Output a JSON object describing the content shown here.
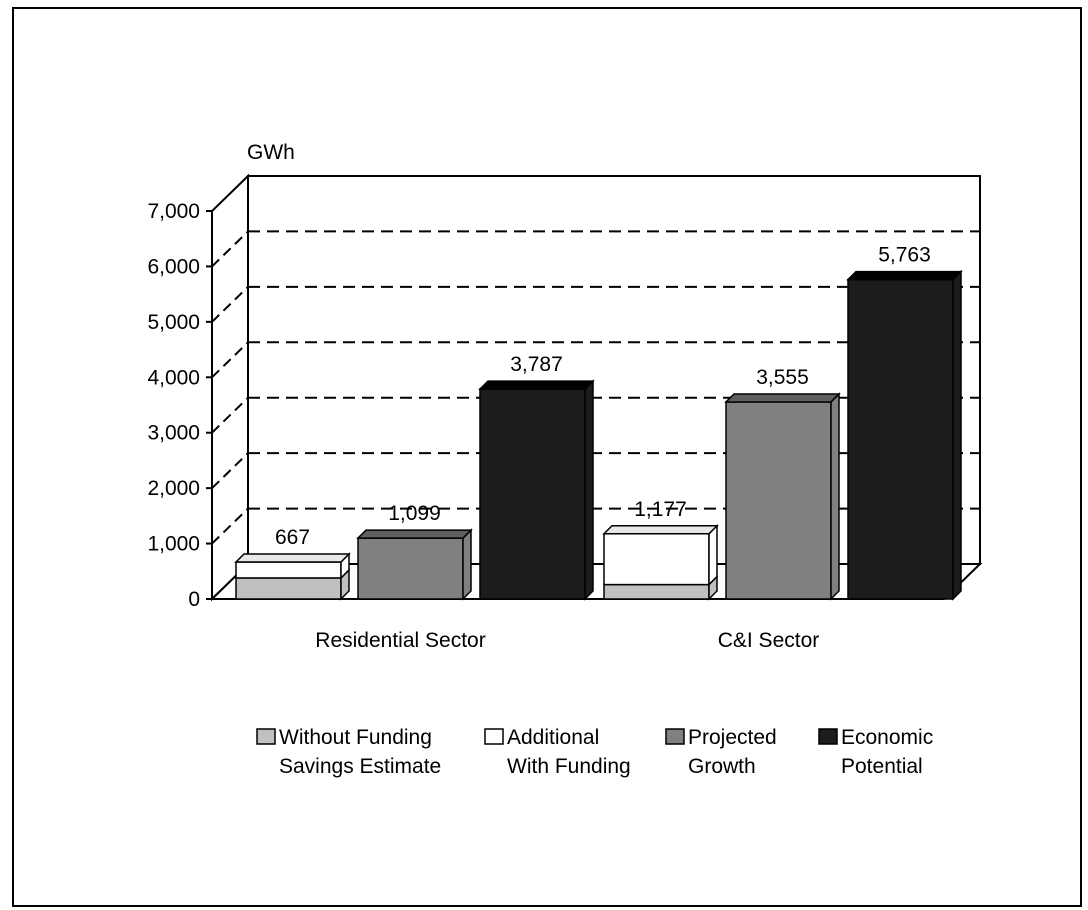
{
  "chart_data": {
    "type": "bar",
    "stacked_first_series": true,
    "unit_label": "GWh",
    "categories": [
      "Residential Sector",
      "C&I Sector"
    ],
    "ylim": [
      0,
      7000
    ],
    "yticks": [
      "0",
      "1,000",
      "2,000",
      "3,000",
      "4,000",
      "5,000",
      "6,000",
      "7,000"
    ],
    "grid": true,
    "legend_position": "bottom",
    "series": [
      {
        "name": "Without Funding Savings Estimate",
        "legend_lines": [
          "Without Funding",
          "Savings Estimate"
        ],
        "values": [
          380,
          260
        ],
        "color": "#c0c0c0"
      },
      {
        "name": "Additional With Funding",
        "legend_lines": [
          "Additional",
          "With Funding"
        ],
        "values": [
          287,
          917
        ],
        "color": "#ffffff"
      },
      {
        "name": "Projected Growth",
        "legend_lines": [
          "Projected",
          "Growth"
        ],
        "values": [
          1099,
          3555
        ],
        "color": "#808080"
      },
      {
        "name": "Economic Potential",
        "legend_lines": [
          "Economic",
          "Potential"
        ],
        "values": [
          3787,
          5763
        ],
        "color": "#1c1c1c"
      }
    ],
    "data_labels": [
      [
        "667",
        "1,099",
        "3,787"
      ],
      [
        "1,177",
        "3,555",
        "5,763"
      ]
    ]
  }
}
